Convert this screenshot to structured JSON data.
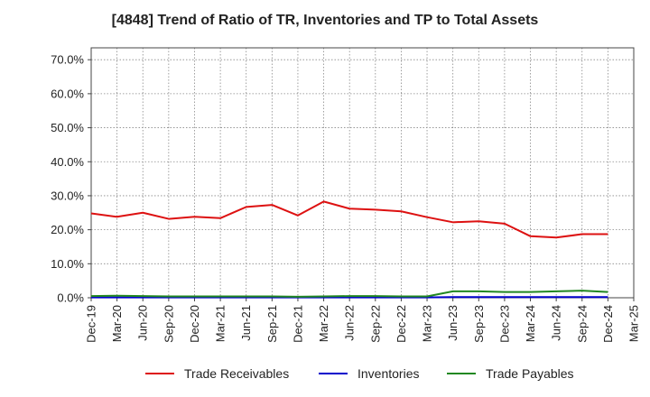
{
  "chart_data": {
    "type": "line",
    "title": "[4848]  Trend of Ratio of TR, Inventories and TP to Total Assets",
    "xlabel": "",
    "ylabel": "",
    "ylim": [
      0,
      0.735
    ],
    "grid": true,
    "legend_position": "bottom",
    "y_ticks": [
      {
        "value": 0.0,
        "label": "0.0%"
      },
      {
        "value": 0.1,
        "label": "10.0%"
      },
      {
        "value": 0.2,
        "label": "20.0%"
      },
      {
        "value": 0.3,
        "label": "30.0%"
      },
      {
        "value": 0.4,
        "label": "40.0%"
      },
      {
        "value": 0.5,
        "label": "50.0%"
      },
      {
        "value": 0.6,
        "label": "60.0%"
      },
      {
        "value": 0.7,
        "label": "70.0%"
      }
    ],
    "categories": [
      "Dec-19",
      "Mar-20",
      "Jun-20",
      "Sep-20",
      "Dec-20",
      "Mar-21",
      "Jun-21",
      "Sep-21",
      "Dec-21",
      "Mar-22",
      "Jun-22",
      "Sep-22",
      "Dec-22",
      "Mar-23",
      "Jun-23",
      "Sep-23",
      "Dec-23",
      "Mar-24",
      "Jun-24",
      "Sep-24",
      "Dec-24",
      "Mar-25"
    ],
    "series": [
      {
        "name": "Trade Receivables",
        "color": "#dd1111",
        "values": [
          0.248,
          0.238,
          0.25,
          0.232,
          0.238,
          0.234,
          0.267,
          0.273,
          0.242,
          0.283,
          0.262,
          0.259,
          0.254,
          0.237,
          0.222,
          0.225,
          0.218,
          0.181,
          0.177,
          0.187,
          0.187,
          null
        ]
      },
      {
        "name": "Inventories",
        "color": "#0000cc",
        "values": [
          0.001,
          0.001,
          0.001,
          0.001,
          0.001,
          0.001,
          0.001,
          0.001,
          0.001,
          0.001,
          0.001,
          0.001,
          0.001,
          0.001,
          0.002,
          0.002,
          0.002,
          0.002,
          0.002,
          0.002,
          0.002,
          null
        ]
      },
      {
        "name": "Trade Payables",
        "color": "#228822",
        "values": [
          0.005,
          0.006,
          0.005,
          0.004,
          0.004,
          0.004,
          0.004,
          0.004,
          0.003,
          0.004,
          0.005,
          0.005,
          0.004,
          0.004,
          0.019,
          0.019,
          0.017,
          0.017,
          0.019,
          0.021,
          0.017,
          null
        ]
      }
    ]
  }
}
